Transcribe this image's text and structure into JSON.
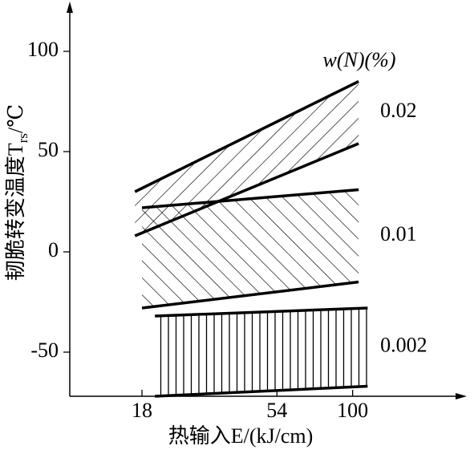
{
  "chart_data": {
    "type": "band",
    "legend_title": "w(N)(%)",
    "x_label": "热输入E/(kJ/cm)",
    "y_label": "韧脆转变温度T",
    "y_label_sub": "rs",
    "y_label_unit": "/℃",
    "log_x": true,
    "xlim": [
      10,
      250
    ],
    "xticks": [
      18,
      54,
      100
    ],
    "ylim": [
      -72,
      120
    ],
    "yticks": [
      100,
      50,
      0,
      -50
    ],
    "color": "#000000",
    "bands": [
      {
        "name": "0.02",
        "hatch": "diag-right",
        "x": [
          17,
          105
        ],
        "upper": [
          30,
          85
        ],
        "lower": [
          8,
          54
        ]
      },
      {
        "name": "0.01",
        "hatch": "diag-left",
        "x": [
          18,
          105
        ],
        "upper": [
          22,
          31
        ],
        "lower": [
          -28,
          -15
        ]
      },
      {
        "name": "0.002",
        "hatch": "vertical",
        "x": [
          20,
          113
        ],
        "upper": [
          -32,
          -28
        ],
        "lower": [
          -72,
          -67
        ]
      }
    ]
  }
}
